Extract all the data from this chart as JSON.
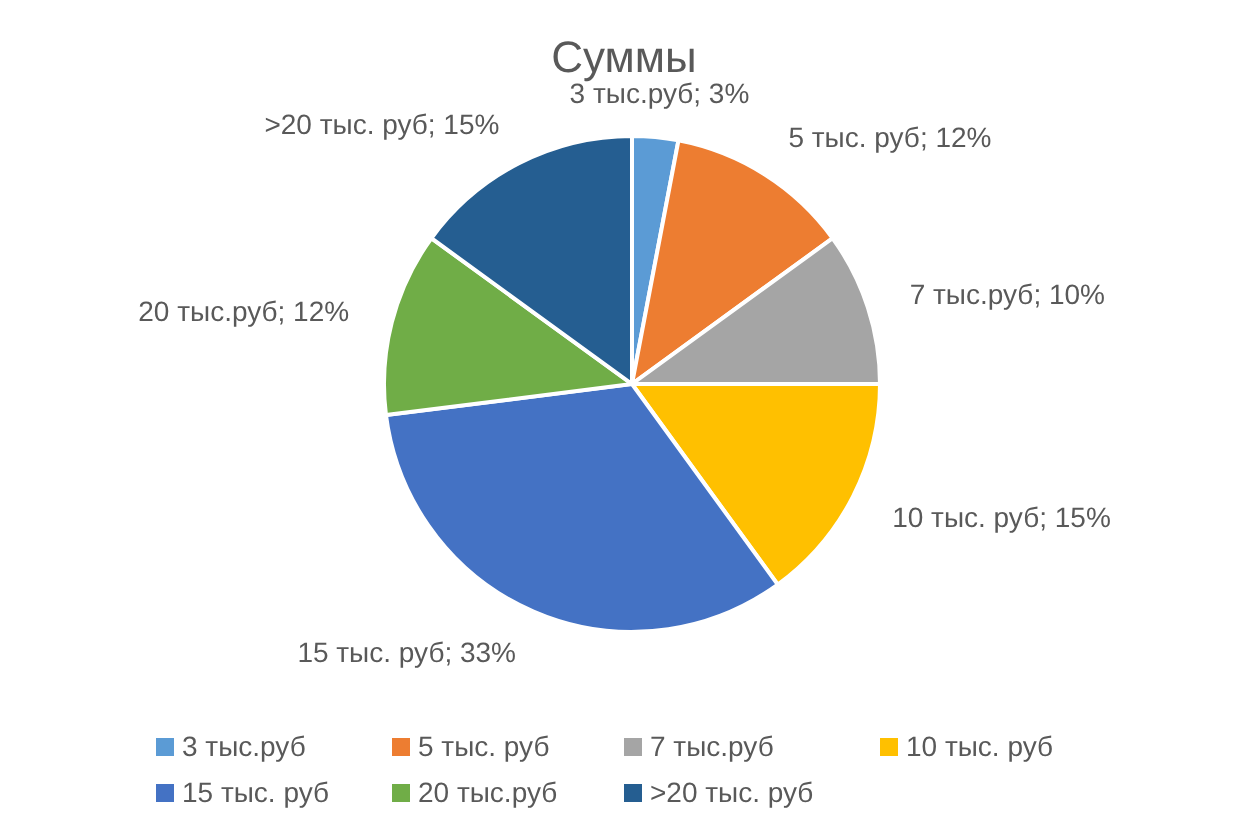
{
  "chart_data": {
    "type": "pie",
    "title": "Суммы",
    "categories": [
      "3 тыс.руб",
      "5 тыс. руб",
      "7 тыс.руб",
      "10 тыс. руб",
      "15 тыс. руб",
      "20 тыс.руб",
      ">20 тыс. руб"
    ],
    "values": [
      3,
      12,
      10,
      15,
      33,
      12,
      15
    ],
    "colors": [
      "#5b9bd5",
      "#ed7d31",
      "#a5a5a5",
      "#ffc000",
      "#4472c4",
      "#70ad47",
      "#255e91"
    ],
    "value_labels": [
      "3 тыс.руб; 3%",
      "5 тыс. руб; 12%",
      "7 тыс.руб; 10%",
      "10 тыс. руб; 15%",
      "15 тыс. руб; 33%",
      "20 тыс.руб; 12%",
      ">20 тыс. руб; 15%"
    ],
    "legend": "bottom"
  }
}
